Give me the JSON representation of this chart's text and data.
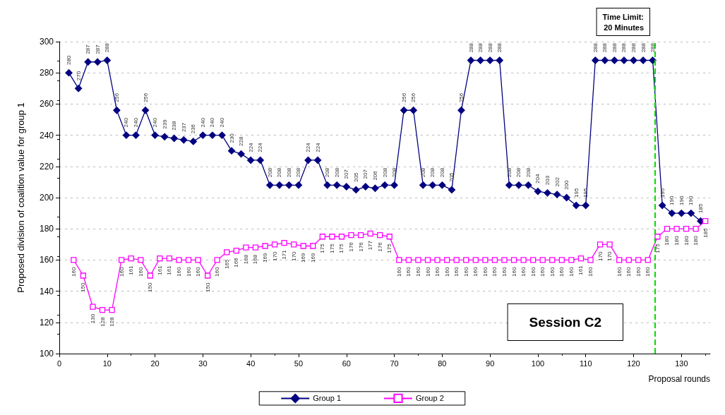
{
  "chart_data": {
    "type": "line",
    "xlabel": "Proposal rounds",
    "ylabel": "Proposed division of coalition value for group 1",
    "xlim": [
      0,
      136
    ],
    "xticks": [
      0,
      10,
      20,
      30,
      40,
      50,
      60,
      70,
      80,
      90,
      100,
      110,
      120,
      130
    ],
    "ylim": [
      100,
      300
    ],
    "yticks": [
      100,
      120,
      140,
      160,
      180,
      200,
      220,
      240,
      260,
      280,
      300
    ],
    "grid": "y",
    "legend": "bottom",
    "data_labels": true,
    "line_style": "solid",
    "annotations": [
      "Session C2",
      "Time Limit:\n20 Minutes"
    ],
    "ref_lines": [
      {
        "axis": "x",
        "value": 124.5,
        "color": "#00dd00",
        "line_style": "dashed"
      }
    ],
    "series": [
      {
        "name": "Group 1",
        "color": "#000080",
        "marker": "diamond",
        "x": [
          2,
          4,
          6,
          8,
          10,
          12,
          14,
          16,
          18,
          20,
          22,
          24,
          26,
          28,
          30,
          32,
          34,
          36,
          38,
          40,
          42,
          44,
          46,
          48,
          50,
          52,
          54,
          56,
          58,
          60,
          62,
          64,
          66,
          68,
          70,
          72,
          74,
          76,
          78,
          80,
          82,
          84,
          86,
          88,
          90,
          92,
          94,
          96,
          98,
          100,
          102,
          104,
          106,
          108,
          110,
          112,
          114,
          116,
          118,
          120,
          122,
          124,
          126,
          128,
          130,
          132,
          134
        ],
        "values": [
          280,
          270,
          287,
          287,
          288,
          256,
          240,
          240,
          256,
          240,
          239,
          238,
          237,
          236,
          240,
          240,
          240,
          230,
          228,
          224,
          224,
          208,
          208,
          208,
          208,
          224,
          224,
          208,
          208,
          207,
          205,
          207,
          206,
          208,
          208,
          256,
          256,
          208,
          208,
          208,
          205,
          256,
          288,
          288,
          288,
          288,
          208,
          208,
          208,
          204,
          203,
          202,
          200,
          195,
          195,
          288,
          288,
          288,
          288,
          288,
          288,
          288,
          195,
          190,
          190,
          190,
          185
        ]
      },
      {
        "name": "Group 2",
        "color": "#ff00ff",
        "marker": "square",
        "x": [
          3,
          5,
          7,
          9,
          11,
          13,
          15,
          17,
          19,
          21,
          23,
          25,
          27,
          29,
          31,
          33,
          35,
          37,
          39,
          41,
          43,
          45,
          47,
          49,
          51,
          53,
          55,
          57,
          59,
          61,
          63,
          65,
          67,
          69,
          71,
          73,
          75,
          77,
          79,
          81,
          83,
          85,
          87,
          89,
          91,
          93,
          95,
          97,
          99,
          101,
          103,
          105,
          107,
          109,
          111,
          113,
          115,
          117,
          119,
          121,
          123,
          125,
          127,
          129,
          131,
          133,
          135
        ],
        "values": [
          160,
          150,
          130,
          128,
          128,
          160,
          161,
          160,
          150,
          161,
          161,
          160,
          160,
          160,
          150,
          160,
          165,
          166,
          168,
          168,
          169,
          170,
          171,
          170,
          169,
          169,
          175,
          175,
          175,
          176,
          176,
          177,
          176,
          175,
          160,
          160,
          160,
          160,
          160,
          160,
          160,
          160,
          160,
          160,
          160,
          160,
          160,
          160,
          160,
          160,
          160,
          160,
          160,
          161,
          160,
          170,
          170,
          160,
          160,
          160,
          160,
          175,
          180,
          180,
          180,
          180,
          185
        ]
      }
    ]
  }
}
